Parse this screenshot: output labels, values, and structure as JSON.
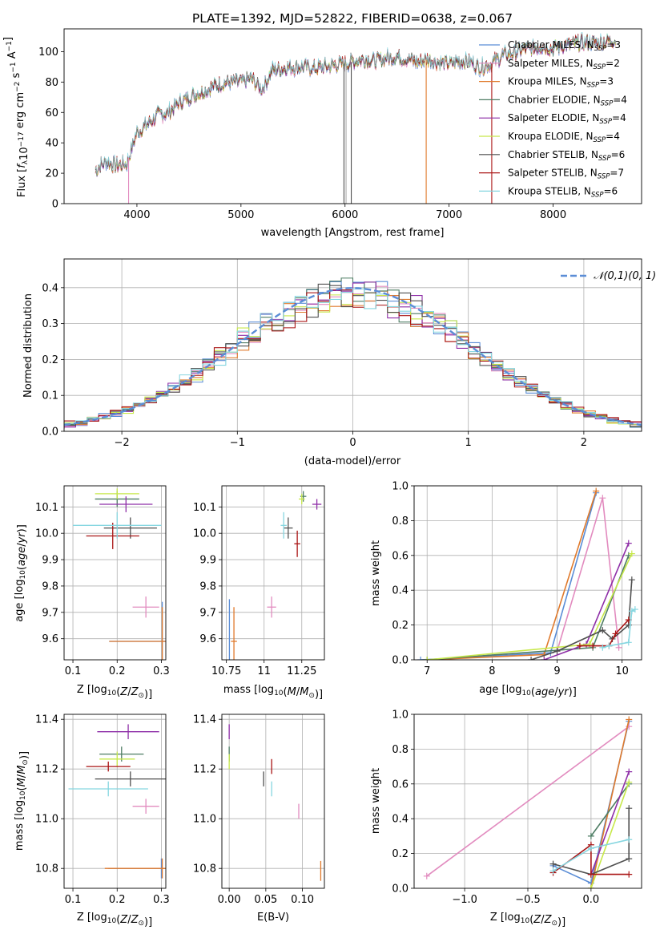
{
  "colors": [
    "#5b8dd6",
    "#e28bbf",
    "#e07a2c",
    "#4e7d64",
    "#8e2ea7",
    "#c7e84a",
    "#4f4f4f",
    "#a91414",
    "#86d6e0",
    "#aaaaaa"
  ],
  "chart_data": [
    {
      "id": "spectrum",
      "type": "line",
      "title": "PLATE=1392, MJD=52822, FIBERID=0638, z=0.067",
      "xlabel": "wavelength [Angstrom, rest frame]",
      "ylabel": "Flux [f_λ 10^-17 erg cm^-2 s^-1 A^-1]",
      "xlim": [
        3300,
        8850
      ],
      "ylim": [
        0,
        115
      ],
      "xticks": [
        4000,
        5000,
        6000,
        7000,
        8000
      ],
      "yticks": [
        0,
        20,
        40,
        60,
        80,
        100
      ],
      "grid": false,
      "legend_position": "top-right",
      "legend": [
        {
          "name": "Chabrier MILES, N_SSP=3"
        },
        {
          "name": "Salpeter MILES, N_SSP=2"
        },
        {
          "name": "Kroupa MILES, N_SSP=3"
        },
        {
          "name": "Chabrier ELODIE, N_SSP=4"
        },
        {
          "name": "Salpeter ELODIE, N_SSP=4"
        },
        {
          "name": "Kroupa ELODIE, N_SSP=4"
        },
        {
          "name": "Chabrier STELIB, N_SSP=6"
        },
        {
          "name": "Salpeter STELIB, N_SSP=7"
        },
        {
          "name": "Kroupa STELIB, N_SSP=6"
        }
      ],
      "continuum": [
        [
          3600,
          22
        ],
        [
          3700,
          28
        ],
        [
          3800,
          25
        ],
        [
          3900,
          26
        ],
        [
          4000,
          47
        ],
        [
          4100,
          52
        ],
        [
          4200,
          58
        ],
        [
          4300,
          60
        ],
        [
          4400,
          66
        ],
        [
          4500,
          70
        ],
        [
          4600,
          73
        ],
        [
          4700,
          76
        ],
        [
          4800,
          79
        ],
        [
          4900,
          80
        ],
        [
          5000,
          80
        ],
        [
          5100,
          82
        ],
        [
          5200,
          75
        ],
        [
          5300,
          88
        ],
        [
          5400,
          89
        ],
        [
          5500,
          90
        ],
        [
          5600,
          90
        ],
        [
          5700,
          89
        ],
        [
          5800,
          90
        ],
        [
          5900,
          91
        ],
        [
          6000,
          92
        ],
        [
          6100,
          94
        ],
        [
          6200,
          95
        ],
        [
          6300,
          94
        ],
        [
          6400,
          96
        ],
        [
          6500,
          97
        ],
        [
          6600,
          95
        ],
        [
          6700,
          93
        ],
        [
          6800,
          95
        ],
        [
          6900,
          93
        ],
        [
          7000,
          92
        ],
        [
          7100,
          94
        ],
        [
          7200,
          93
        ],
        [
          7300,
          90
        ],
        [
          7400,
          92
        ],
        [
          7500,
          97
        ],
        [
          7600,
          99
        ],
        [
          7700,
          101
        ],
        [
          7800,
          102
        ],
        [
          7900,
          104
        ],
        [
          8000,
          102
        ],
        [
          8100,
          104
        ],
        [
          8200,
          105
        ],
        [
          8300,
          106
        ],
        [
          8400,
          106
        ],
        [
          8500,
          107
        ],
        [
          8600,
          108
        ]
      ],
      "dropouts": [
        [
          3920,
          1
        ],
        [
          5990,
          6
        ],
        [
          6010,
          9
        ],
        [
          6060,
          6
        ],
        [
          6780,
          2
        ],
        [
          7410,
          7
        ]
      ]
    },
    {
      "id": "residuals",
      "type": "step-histogram",
      "xlabel": "(data-model)/error",
      "ylabel": "Normed distribution",
      "xlim": [
        -2.5,
        2.5
      ],
      "ylim": [
        0,
        0.48
      ],
      "xticks": [
        -2,
        -1,
        0,
        1,
        2
      ],
      "yticks": [
        0.0,
        0.1,
        0.2,
        0.3,
        0.4
      ],
      "grid": true,
      "legend_position": "top-right",
      "legend": [
        {
          "name": "𝒩(0,1)"
        }
      ],
      "bin_width": 0.1
    },
    {
      "id": "age-vs-Z",
      "type": "errorbar",
      "xlabel": "Z [log10(Z/Z⊙)]",
      "ylabel": "age [log10(age/yr)]",
      "xlim": [
        0.08,
        0.31
      ],
      "ylim": [
        9.52,
        10.18
      ],
      "xticks": [
        0.1,
        0.2,
        0.3
      ],
      "yticks": [
        9.6,
        9.7,
        9.8,
        9.9,
        10.0,
        10.1
      ],
      "grid": true,
      "points": [
        {
          "c": 0,
          "x": 0.302,
          "y": 9.59,
          "xerr": 0.12,
          "yerr": 0.15
        },
        {
          "c": 1,
          "x": 0.265,
          "y": 9.72,
          "xerr": 0.03,
          "yerr": 0.04
        },
        {
          "c": 2,
          "x": 0.302,
          "y": 9.59,
          "xerr": 0.12,
          "yerr": 0.13
        },
        {
          "c": 3,
          "x": 0.2,
          "y": 10.13,
          "xerr": 0.05,
          "yerr": 0.03
        },
        {
          "c": 4,
          "x": 0.22,
          "y": 10.11,
          "xerr": 0.06,
          "yerr": 0.03
        },
        {
          "c": 5,
          "x": 0.2,
          "y": 10.15,
          "xerr": 0.05,
          "yerr": 0.02
        },
        {
          "c": 6,
          "x": 0.23,
          "y": 10.02,
          "xerr": 0.06,
          "yerr": 0.04
        },
        {
          "c": 7,
          "x": 0.19,
          "y": 9.99,
          "xerr": 0.06,
          "yerr": 0.05
        },
        {
          "c": 8,
          "x": 0.2,
          "y": 10.03,
          "xerr": 0.1,
          "yerr": 0.05
        }
      ]
    },
    {
      "id": "age-vs-mass",
      "type": "errorbar",
      "xlabel": "mass [log10(M/M⊙)]",
      "ylabel": "",
      "xlim": [
        10.72,
        11.4
      ],
      "ylim": [
        9.52,
        10.18
      ],
      "xticks": [
        10.75,
        11.0,
        11.25
      ],
      "yticks": [
        9.6,
        9.7,
        9.8,
        9.9,
        10.0,
        10.1
      ],
      "grid": true,
      "points": [
        {
          "c": 0,
          "x": 10.77,
          "y": 9.6,
          "xerr": 0,
          "yerr": 0.15
        },
        {
          "c": 1,
          "x": 11.05,
          "y": 9.72,
          "xerr": 0.03,
          "yerr": 0.04
        },
        {
          "c": 2,
          "x": 10.8,
          "y": 9.59,
          "xerr": 0.02,
          "yerr": 0.13
        },
        {
          "c": 3,
          "x": 11.26,
          "y": 10.14,
          "xerr": 0.02,
          "yerr": 0.02
        },
        {
          "c": 4,
          "x": 11.35,
          "y": 10.11,
          "xerr": 0.03,
          "yerr": 0.02
        },
        {
          "c": 5,
          "x": 11.25,
          "y": 10.13,
          "xerr": 0.02,
          "yerr": 0.02
        },
        {
          "c": 6,
          "x": 11.16,
          "y": 10.02,
          "xerr": 0.03,
          "yerr": 0.04
        },
        {
          "c": 7,
          "x": 11.22,
          "y": 9.96,
          "xerr": 0.02,
          "yerr": 0.05
        },
        {
          "c": 8,
          "x": 11.13,
          "y": 10.03,
          "xerr": 0.02,
          "yerr": 0.05
        }
      ]
    },
    {
      "id": "weight-vs-age",
      "type": "line",
      "xlabel": "age [log10(age/yr)]",
      "ylabel": "mass weight",
      "xlim": [
        6.8,
        10.3
      ],
      "ylim": [
        0,
        1.0
      ],
      "xticks": [
        7,
        8,
        9,
        10
      ],
      "yticks": [
        0.0,
        0.2,
        0.4,
        0.6,
        0.8,
        1.0
      ],
      "grid": true,
      "series": [
        {
          "c": 0,
          "x": [
            6.9,
            8.9,
            9.6
          ],
          "y": [
            0.0,
            0.04,
            0.96
          ]
        },
        {
          "c": 1,
          "x": [
            9.0,
            9.7,
            9.95
          ],
          "y": [
            0.05,
            0.93,
            0.07
          ]
        },
        {
          "c": 2,
          "x": [
            7.0,
            8.8,
            9.6
          ],
          "y": [
            0.0,
            0.03,
            0.97
          ]
        },
        {
          "c": 3,
          "x": [
            7.0,
            9.55,
            10.1
          ],
          "y": [
            0.0,
            0.07,
            0.6
          ]
        },
        {
          "c": 4,
          "x": [
            8.8,
            9.45,
            10.1
          ],
          "y": [
            0.0,
            0.09,
            0.67
          ]
        },
        {
          "c": 5,
          "x": [
            7.0,
            9.5,
            10.15
          ],
          "y": [
            0.0,
            0.09,
            0.61
          ]
        },
        {
          "c": 6,
          "x": [
            8.6,
            9.0,
            9.7,
            9.85,
            10.1,
            10.15
          ],
          "y": [
            0.0,
            0.05,
            0.17,
            0.12,
            0.2,
            0.46
          ]
        },
        {
          "c": 7,
          "x": [
            9.35,
            9.55,
            9.8,
            9.9,
            10.1
          ],
          "y": [
            0.08,
            0.08,
            0.08,
            0.15,
            0.23
          ]
        },
        {
          "c": 8,
          "x": [
            9.7,
            9.8,
            10.1,
            10.15,
            10.2
          ],
          "y": [
            0.07,
            0.08,
            0.1,
            0.28,
            0.29
          ]
        }
      ]
    },
    {
      "id": "mass-vs-Z",
      "type": "errorbar",
      "xlabel": "Z [log10(Z/Z⊙)]",
      "ylabel": "mass [log10(M/M⊙)]",
      "xlim": [
        0.08,
        0.31
      ],
      "ylim": [
        10.72,
        11.42
      ],
      "xticks": [
        0.1,
        0.2,
        0.3
      ],
      "yticks": [
        10.8,
        11.0,
        11.2,
        11.4
      ],
      "grid": true,
      "points": [
        {
          "c": 0,
          "x": 0.3,
          "y": 10.8,
          "xerr": 0.12,
          "yerr": 0.04
        },
        {
          "c": 1,
          "x": 0.265,
          "y": 11.05,
          "xerr": 0.03,
          "yerr": 0.03
        },
        {
          "c": 2,
          "x": 0.302,
          "y": 10.8,
          "xerr": 0.13,
          "yerr": 0.04
        },
        {
          "c": 3,
          "x": 0.21,
          "y": 11.26,
          "xerr": 0.05,
          "yerr": 0.03
        },
        {
          "c": 4,
          "x": 0.225,
          "y": 11.35,
          "xerr": 0.07,
          "yerr": 0.03
        },
        {
          "c": 5,
          "x": 0.2,
          "y": 11.24,
          "xerr": 0.04,
          "yerr": 0.03
        },
        {
          "c": 6,
          "x": 0.23,
          "y": 11.16,
          "xerr": 0.08,
          "yerr": 0.03
        },
        {
          "c": 7,
          "x": 0.18,
          "y": 11.21,
          "xerr": 0.05,
          "yerr": 0.02
        },
        {
          "c": 8,
          "x": 0.18,
          "y": 11.12,
          "xerr": 0.09,
          "yerr": 0.03
        }
      ]
    },
    {
      "id": "mass-vs-ebv",
      "type": "errorbar",
      "xlabel": "E(B-V)",
      "ylabel": "",
      "xlim": [
        -0.01,
        0.13
      ],
      "ylim": [
        10.72,
        11.42
      ],
      "xticks": [
        0.0,
        0.05,
        0.1
      ],
      "yticks": [
        10.8,
        11.0,
        11.2,
        11.4
      ],
      "grid": true,
      "points": [
        {
          "c": 1,
          "x": 0.095,
          "y": 11.03,
          "xerr": 0,
          "yerr": 0.03
        },
        {
          "c": 2,
          "x": 0.125,
          "y": 10.79,
          "xerr": 0,
          "yerr": 0.04
        },
        {
          "c": 3,
          "x": 0.0,
          "y": 11.26,
          "xerr": 0,
          "yerr": 0.03
        },
        {
          "c": 4,
          "x": 0.0,
          "y": 11.35,
          "xerr": 0,
          "yerr": 0.03
        },
        {
          "c": 5,
          "x": 0.0,
          "y": 11.23,
          "xerr": 0,
          "yerr": 0.03
        },
        {
          "c": 6,
          "x": 0.047,
          "y": 11.16,
          "xerr": 0,
          "yerr": 0.03
        },
        {
          "c": 7,
          "x": 0.058,
          "y": 11.21,
          "xerr": 0,
          "yerr": 0.03
        },
        {
          "c": 8,
          "x": 0.058,
          "y": 11.12,
          "xerr": 0,
          "yerr": 0.03
        }
      ]
    },
    {
      "id": "weight-vs-Z",
      "type": "line",
      "xlabel": "Z [log10(Z/Z⊙)]",
      "ylabel": "mass weight",
      "xlim": [
        -1.4,
        0.4
      ],
      "ylim": [
        0,
        1.0
      ],
      "xticks": [
        -1.0,
        -0.5,
        0.0
      ],
      "yticks": [
        0.0,
        0.2,
        0.4,
        0.6,
        0.8,
        1.0
      ],
      "grid": true,
      "series": [
        {
          "c": 0,
          "x": [
            -0.3,
            0.0,
            0.3
          ],
          "y": [
            0.13,
            0.03,
            0.96
          ]
        },
        {
          "c": 1,
          "x": [
            -1.3,
            0.3
          ],
          "y": [
            0.07,
            0.93
          ]
        },
        {
          "c": 2,
          "x": [
            0.0,
            0.3
          ],
          "y": [
            0.0,
            0.97
          ]
        },
        {
          "c": 3,
          "x": [
            0.0,
            0.3
          ],
          "y": [
            0.3,
            0.6
          ]
        },
        {
          "c": 4,
          "x": [
            0.0,
            0.3
          ],
          "y": [
            0.08,
            0.67
          ]
        },
        {
          "c": 5,
          "x": [
            0.0,
            0.3
          ],
          "y": [
            0.0,
            0.61
          ]
        },
        {
          "c": 6,
          "x": [
            -0.3,
            0.0,
            0.3,
            0.3
          ],
          "y": [
            0.14,
            0.08,
            0.17,
            0.46
          ]
        },
        {
          "c": 7,
          "x": [
            -0.3,
            0.0,
            0.0,
            0.3
          ],
          "y": [
            0.09,
            0.25,
            0.08,
            0.08
          ]
        },
        {
          "c": 8,
          "x": [
            -0.3,
            0.0,
            0.3
          ],
          "y": [
            0.1,
            0.23,
            0.28
          ]
        }
      ]
    }
  ]
}
